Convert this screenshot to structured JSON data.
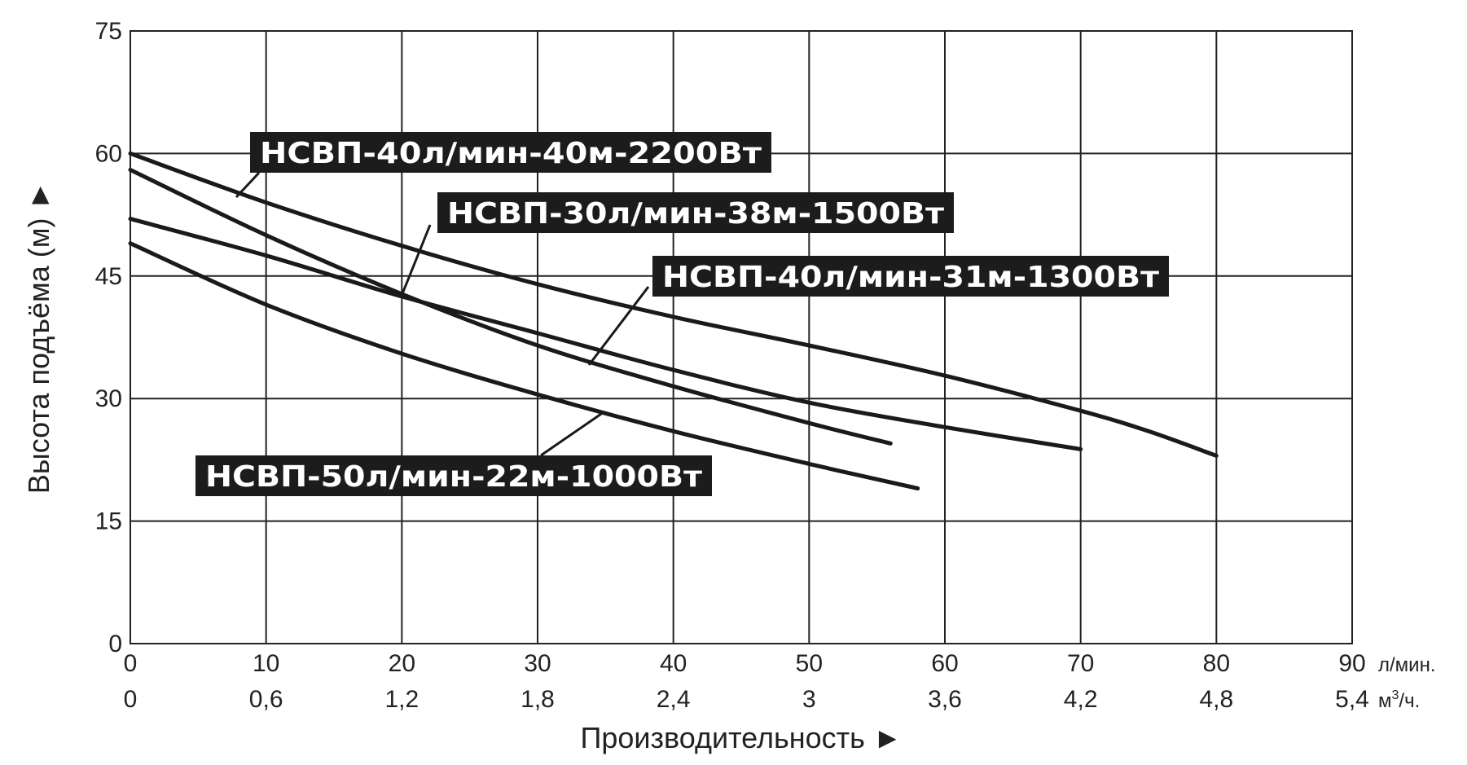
{
  "chart_data": {
    "type": "line",
    "title": "",
    "xlabel": "Производительность ►",
    "ylabel": "Высота подъёма (м) ►",
    "xlim": [
      0,
      90
    ],
    "ylim": [
      0,
      75
    ],
    "grid": true,
    "y_ticks": [
      "0",
      "15",
      "30",
      "45",
      "60",
      "75"
    ],
    "x_ticks": [
      "0",
      "10",
      "20",
      "30",
      "40",
      "50",
      "60",
      "70",
      "80",
      "90"
    ],
    "x_unit": "л/мин.",
    "x2_ticks": [
      "0",
      "0,6",
      "1,2",
      "1,8",
      "2,4",
      "3",
      "3,6",
      "4,2",
      "4,8",
      "5,4"
    ],
    "x2_unit": "м³/ч.",
    "series": [
      {
        "name": "НСВП-40л/мин-40м-2200Вт",
        "x": [
          0,
          10,
          20,
          30,
          40,
          50,
          60,
          70,
          75,
          80
        ],
        "y": [
          60,
          54,
          48.7,
          44,
          40,
          36.5,
          32.8,
          28.5,
          26,
          23
        ]
      },
      {
        "name": "НСВП-30л/мин-38м-1500Вт",
        "x": [
          0,
          10,
          20,
          30,
          40,
          50,
          56
        ],
        "y": [
          58,
          50,
          42.8,
          36.5,
          31.5,
          27,
          24.5
        ]
      },
      {
        "name": "НСВП-40л/мин-31м-1300Вт",
        "x": [
          0,
          10,
          20,
          30,
          40,
          50,
          60,
          70
        ],
        "y": [
          52,
          47.5,
          42.5,
          38,
          33.5,
          29.5,
          26.5,
          23.8
        ]
      },
      {
        "name": "НСВП-50л/мин-22м-1000Вт",
        "x": [
          0,
          10,
          20,
          30,
          40,
          50,
          58
        ],
        "y": [
          49,
          41.5,
          35.5,
          30.5,
          26,
          22,
          19
        ]
      }
    ]
  }
}
